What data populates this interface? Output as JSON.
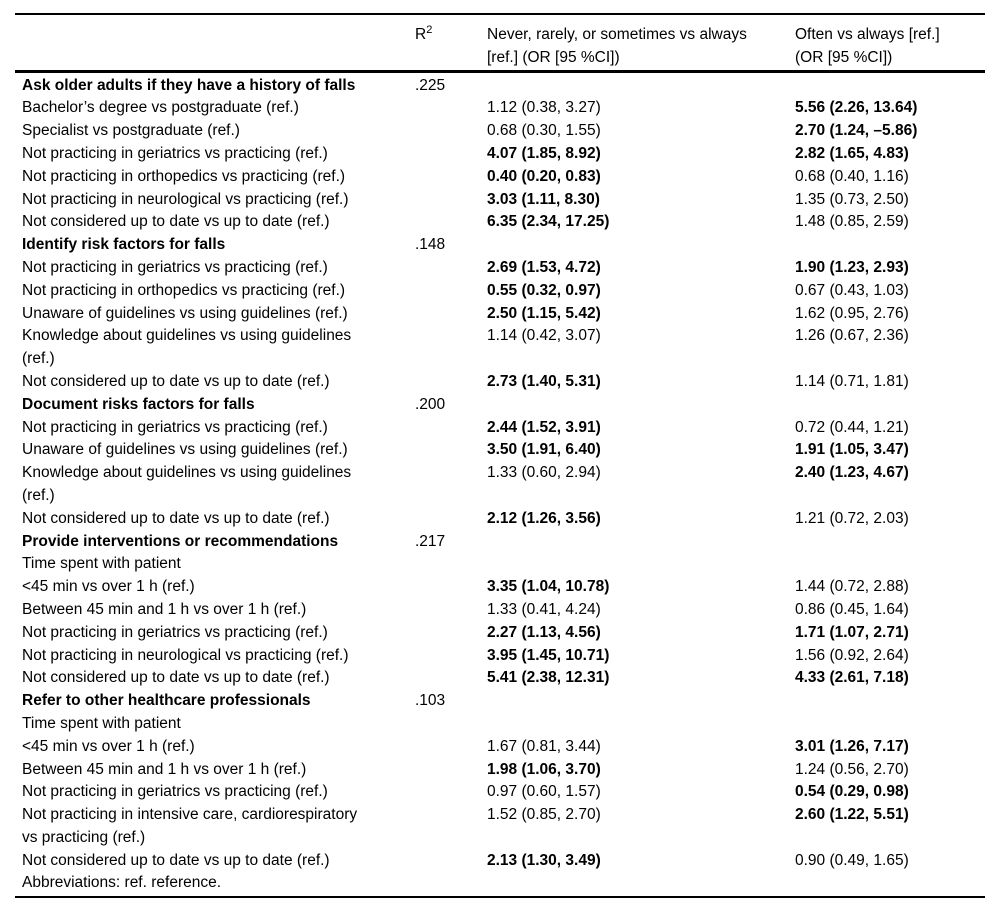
{
  "colors": {
    "text": "#000000",
    "rule": "#000000",
    "background": "#ffffff"
  },
  "table": {
    "header": {
      "col1_label": "",
      "r2_base": "R",
      "r2_superscript": "2",
      "col3_label": "Never, rarely, or sometimes vs always [ref.] (OR [95 %CI])",
      "col4_label": "Often vs always [ref.] (OR [95 %CI])"
    },
    "rows": [
      {
        "section": true,
        "label": "Ask older adults if they have a history of falls",
        "r2": ".225",
        "or1": "",
        "or1_bold": false,
        "or2": "",
        "or2_bold": false
      },
      {
        "section": false,
        "label": "Bachelor’s degree vs postgraduate (ref.)",
        "r2": "",
        "or1": "1.12 (0.38, 3.27)",
        "or1_bold": false,
        "or2": "5.56 (2.26, 13.64)",
        "or2_bold": true
      },
      {
        "section": false,
        "label": "Specialist vs postgraduate (ref.)",
        "r2": "",
        "or1": "0.68 (0.30, 1.55)",
        "or1_bold": false,
        "or2": "2.70 (1.24, –5.86)",
        "or2_bold": true
      },
      {
        "section": false,
        "label": "Not practicing in geriatrics vs practicing (ref.)",
        "r2": "",
        "or1": "4.07 (1.85, 8.92)",
        "or1_bold": true,
        "or2": "2.82 (1.65, 4.83)",
        "or2_bold": true
      },
      {
        "section": false,
        "label": "Not practicing in orthopedics vs practicing (ref.)",
        "r2": "",
        "or1": "0.40 (0.20, 0.83)",
        "or1_bold": true,
        "or2": "0.68 (0.40, 1.16)",
        "or2_bold": false
      },
      {
        "section": false,
        "label": "Not practicing in neurological vs practicing (ref.)",
        "r2": "",
        "or1": "3.03 (1.11, 8.30)",
        "or1_bold": true,
        "or2": "1.35 (0.73, 2.50)",
        "or2_bold": false
      },
      {
        "section": false,
        "label": "Not considered up to date vs up to date (ref.)",
        "r2": "",
        "or1": "6.35 (2.34, 17.25)",
        "or1_bold": true,
        "or2": "1.48 (0.85, 2.59)",
        "or2_bold": false
      },
      {
        "section": true,
        "label": "Identify risk factors for falls",
        "r2": ".148",
        "or1": "",
        "or1_bold": false,
        "or2": "",
        "or2_bold": false
      },
      {
        "section": false,
        "label": "Not practicing in geriatrics vs practicing (ref.)",
        "r2": "",
        "or1": "2.69 (1.53, 4.72)",
        "or1_bold": true,
        "or2": "1.90 (1.23, 2.93)",
        "or2_bold": true
      },
      {
        "section": false,
        "label": "Not practicing in orthopedics vs practicing (ref.)",
        "r2": "",
        "or1": "0.55 (0.32, 0.97)",
        "or1_bold": true,
        "or2": "0.67 (0.43, 1.03)",
        "or2_bold": false
      },
      {
        "section": false,
        "label": "Unaware of guidelines vs using guidelines (ref.)",
        "r2": "",
        "or1": "2.50 (1.15, 5.42)",
        "or1_bold": true,
        "or2": "1.62 (0.95, 2.76)",
        "or2_bold": false
      },
      {
        "section": false,
        "label": "Knowledge about guidelines vs using guidelines\n(ref.)",
        "r2": "",
        "or1": "1.14 (0.42, 3.07)",
        "or1_bold": false,
        "or2": "1.26 (0.67, 2.36)",
        "or2_bold": false
      },
      {
        "section": false,
        "label": "Not considered up to date vs up to date (ref.)",
        "r2": "",
        "or1": "2.73 (1.40, 5.31)",
        "or1_bold": true,
        "or2": "1.14 (0.71, 1.81)",
        "or2_bold": false
      },
      {
        "section": true,
        "label": "Document risks factors for falls",
        "r2": ".200",
        "or1": "",
        "or1_bold": false,
        "or2": "",
        "or2_bold": false
      },
      {
        "section": false,
        "label": "Not practicing in geriatrics vs practicing (ref.)",
        "r2": "",
        "or1": "2.44 (1.52, 3.91)",
        "or1_bold": true,
        "or2": "0.72 (0.44, 1.21)",
        "or2_bold": false
      },
      {
        "section": false,
        "label": "Unaware of guidelines vs using guidelines (ref.)",
        "r2": "",
        "or1": "3.50 (1.91, 6.40)",
        "or1_bold": true,
        "or2": "1.91 (1.05, 3.47)",
        "or2_bold": true
      },
      {
        "section": false,
        "label": "Knowledge about guidelines vs using guidelines\n(ref.)",
        "r2": "",
        "or1": "1.33 (0.60, 2.94)",
        "or1_bold": false,
        "or2": "2.40 (1.23, 4.67)",
        "or2_bold": true
      },
      {
        "section": false,
        "label": "Not considered up to date vs up to date (ref.)",
        "r2": "",
        "or1": "2.12 (1.26, 3.56)",
        "or1_bold": true,
        "or2": "1.21 (0.72, 2.03)",
        "or2_bold": false
      },
      {
        "section": true,
        "label": "Provide interventions or recommendations",
        "r2": ".217",
        "or1": "",
        "or1_bold": false,
        "or2": "",
        "or2_bold": false
      },
      {
        "section": false,
        "label": "Time spent with patient",
        "r2": "",
        "or1": "",
        "or1_bold": false,
        "or2": "",
        "or2_bold": false
      },
      {
        "section": false,
        "label": "<45 min vs over 1 h (ref.)",
        "r2": "",
        "or1": "3.35 (1.04, 10.78)",
        "or1_bold": true,
        "or2": "1.44 (0.72, 2.88)",
        "or2_bold": false
      },
      {
        "section": false,
        "label": "Between 45 min and 1 h vs over 1 h (ref.)",
        "r2": "",
        "or1": "1.33 (0.41, 4.24)",
        "or1_bold": false,
        "or2": "0.86 (0.45, 1.64)",
        "or2_bold": false
      },
      {
        "section": false,
        "label": "Not practicing in geriatrics vs practicing (ref.)",
        "r2": "",
        "or1": "2.27 (1.13, 4.56)",
        "or1_bold": true,
        "or2": "1.71 (1.07, 2.71)",
        "or2_bold": true
      },
      {
        "section": false,
        "label": "Not practicing in neurological vs practicing (ref.)",
        "r2": "",
        "or1": "3.95 (1.45, 10.71)",
        "or1_bold": true,
        "or2": "1.56 (0.92, 2.64)",
        "or2_bold": false
      },
      {
        "section": false,
        "label": "Not considered up to date vs up to date (ref.)",
        "r2": "",
        "or1": "5.41 (2.38, 12.31)",
        "or1_bold": true,
        "or2": "4.33 (2.61, 7.18)",
        "or2_bold": true
      },
      {
        "section": true,
        "label": "Refer to other healthcare professionals",
        "r2": ".103",
        "or1": "",
        "or1_bold": false,
        "or2": "",
        "or2_bold": false
      },
      {
        "section": false,
        "label": "Time spent with patient",
        "r2": "",
        "or1": "",
        "or1_bold": false,
        "or2": "",
        "or2_bold": false
      },
      {
        "section": false,
        "label": "<45 min vs over 1 h (ref.)",
        "r2": "",
        "or1": "1.67 (0.81, 3.44)",
        "or1_bold": false,
        "or2": "3.01 (1.26, 7.17)",
        "or2_bold": true
      },
      {
        "section": false,
        "label": "Between 45 min and 1 h vs over 1 h (ref.)",
        "r2": "",
        "or1": "1.98 (1.06, 3.70)",
        "or1_bold": true,
        "or2": "1.24 (0.56, 2.70)",
        "or2_bold": false
      },
      {
        "section": false,
        "label": "Not practicing in geriatrics vs practicing (ref.)",
        "r2": "",
        "or1": "0.97 (0.60, 1.57)",
        "or1_bold": false,
        "or2": "0.54 (0.29, 0.98)",
        "or2_bold": true
      },
      {
        "section": false,
        "label": "Not practicing in intensive care, cardiorespiratory\nvs practicing (ref.)",
        "r2": "",
        "or1": "1.52 (0.85, 2.70)",
        "or1_bold": false,
        "or2": "2.60 (1.22, 5.51)",
        "or2_bold": true
      },
      {
        "section": false,
        "label": "Not considered up to date vs up to date (ref.)",
        "r2": "",
        "or1": "2.13 (1.30, 3.49)",
        "or1_bold": true,
        "or2": "0.90 (0.49, 1.65)",
        "or2_bold": false
      }
    ],
    "footnote": "Abbreviations: ref. reference."
  }
}
